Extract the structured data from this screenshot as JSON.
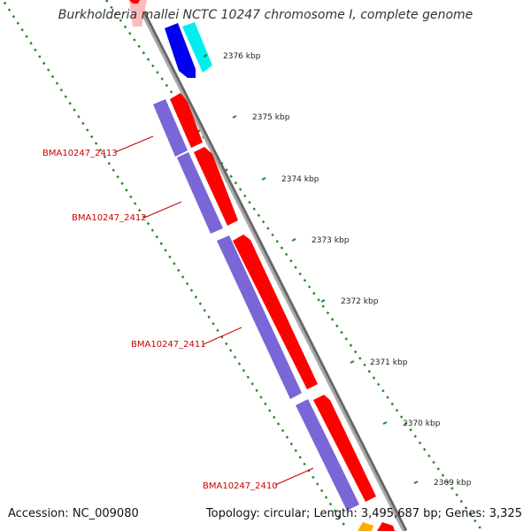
{
  "title": "Burkholderia mallei NCTC 10247 chromosome I, complete genome",
  "accession": "Accession: NC_009080",
  "summary": "Topology: circular; Length: 3,495,687 bp; Genes: 3,325",
  "colors": {
    "backbone": "#888888",
    "cds_red": "#ff0000",
    "cds_purple": "#7a66d6",
    "cds_blue": "#0000ee",
    "cds_cyan": "#00eeee",
    "cds_pink": "#ffbbbb",
    "cds_orange": "#ffaa00",
    "tick_green": "#228822",
    "label_red": "#cc0000",
    "title_gray": "#333333"
  },
  "ticks": [
    {
      "label": "2376 kbp"
    },
    {
      "label": "2375 kbp"
    },
    {
      "label": "2374 kbp"
    },
    {
      "label": "2373 kbp"
    },
    {
      "label": "2372 kbp"
    },
    {
      "label": "2371 kbp"
    },
    {
      "label": "2370 kbp"
    },
    {
      "label": "2369 kbp"
    }
  ],
  "gene_labels": [
    {
      "label": "BMA10247_2413"
    },
    {
      "label": "BMA10247_2412"
    },
    {
      "label": "BMA10247_2411"
    },
    {
      "label": "BMA10247_2410"
    }
  ]
}
